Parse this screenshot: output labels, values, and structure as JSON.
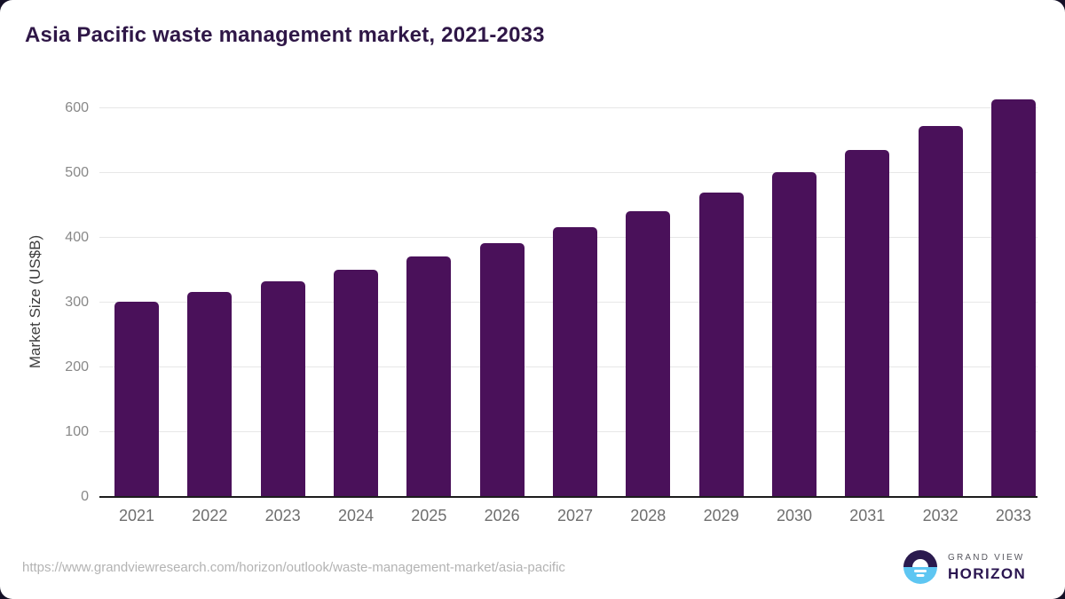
{
  "page": {
    "title": "Asia Pacific waste management market, 2021-2033"
  },
  "chart_data": {
    "type": "bar",
    "title": "Asia Pacific waste management market, 2021-2033",
    "xlabel": "",
    "ylabel": "Market Size (US$B)",
    "categories": [
      "2021",
      "2022",
      "2023",
      "2024",
      "2025",
      "2026",
      "2027",
      "2028",
      "2029",
      "2030",
      "2031",
      "2032",
      "2033"
    ],
    "values": [
      301,
      317,
      333,
      351,
      371,
      392,
      416,
      441,
      470,
      501,
      536,
      572,
      614
    ],
    "yticks": [
      0,
      100,
      200,
      300,
      400,
      500,
      600
    ],
    "yaxis_scale_max": 600,
    "ylim": [
      0,
      620
    ],
    "grid": "horizontal",
    "legend": "none",
    "bar_color": "#4a115a"
  },
  "colors": {
    "title": "#2f1747",
    "bar": "#4a115a",
    "gridline": "#e7e7e7",
    "axis_line": "#1c1c1c",
    "ytick_label": "#888888",
    "xtick_label": "#6e6e6e",
    "url_text": "#b3b3b3",
    "logo_dark": "#2a1a4e",
    "logo_blue": "#5ec6f2"
  },
  "footer": {
    "source_url": "https://www.grandviewresearch.com/horizon/outlook/waste-management-market/asia-pacific",
    "logo": {
      "line1": "GRAND VIEW",
      "line2": "HORIZON"
    }
  }
}
